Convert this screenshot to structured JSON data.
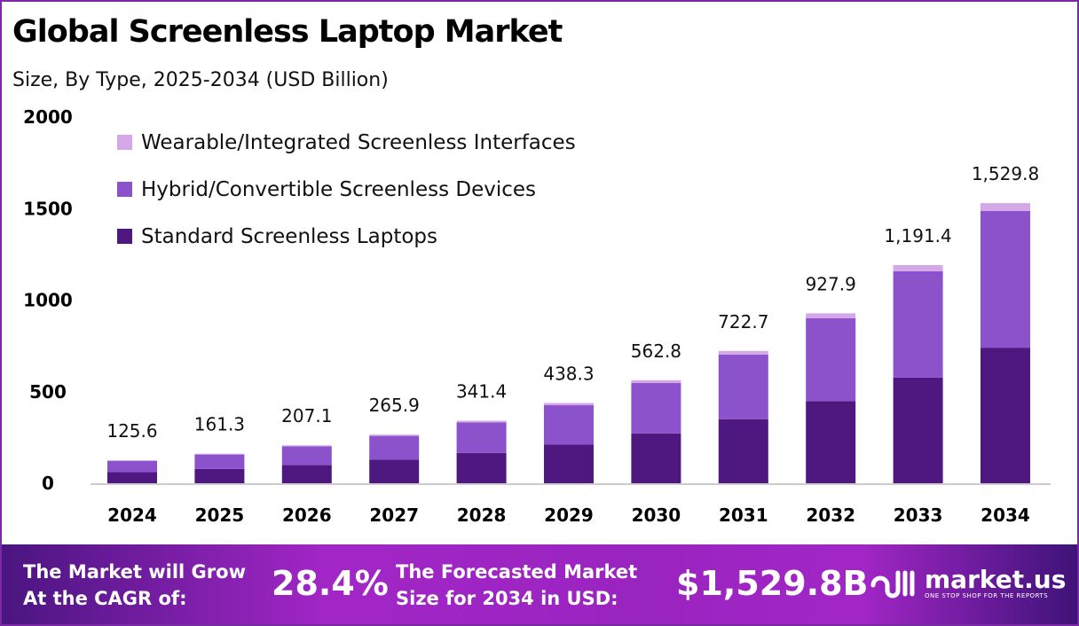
{
  "title": "Global Screenless Laptop Market",
  "subtitle": "Size, By Type, 2025-2034 (USD Billion)",
  "chart_data": {
    "type": "bar",
    "stacked": true,
    "categories": [
      "2024",
      "2025",
      "2026",
      "2027",
      "2028",
      "2029",
      "2030",
      "2031",
      "2032",
      "2033",
      "2034"
    ],
    "series": [
      {
        "name": "Standard Screenless Laptops",
        "color": "#4f1780",
        "values": [
          60.8,
          78.1,
          100.2,
          128.7,
          165.2,
          212.1,
          272.4,
          349.8,
          449.1,
          576.6,
          740.4
        ]
      },
      {
        "name": "Hybrid/Convertible Screenless Devices",
        "color": "#8c52cc",
        "values": [
          61.3,
          78.7,
          101.1,
          129.8,
          166.6,
          213.9,
          274.7,
          352.7,
          452.8,
          581.4,
          746.5
        ]
      },
      {
        "name": "Wearable/Integrated Screenless Interfaces",
        "color": "#d4a8e8",
        "values": [
          3.5,
          4.5,
          5.8,
          7.4,
          9.6,
          12.3,
          15.7,
          20.2,
          26.0,
          33.4,
          42.9
        ]
      }
    ],
    "totals": [
      "125.6",
      "161.3",
      "207.1",
      "265.9",
      "341.4",
      "438.3",
      "562.8",
      "722.7",
      "927.9",
      "1,191.4",
      "1,529.8"
    ],
    "yticks": [
      "0",
      "500",
      "1000",
      "1500",
      "2000"
    ],
    "ylim": [
      0,
      2000
    ],
    "grid": false,
    "legend_position": "top-left"
  },
  "footer": {
    "cagr_text_1": "The Market will Grow",
    "cagr_text_2": "At the CAGR of:",
    "cagr_value": "28.4%",
    "forecast_text_1": "The Forecasted Market",
    "forecast_text_2": "Size for 2034 in USD:",
    "forecast_value": "$1,529.8B",
    "logo_name": "market.us",
    "logo_tagline": "ONE STOP SHOP FOR THE REPORTS"
  }
}
